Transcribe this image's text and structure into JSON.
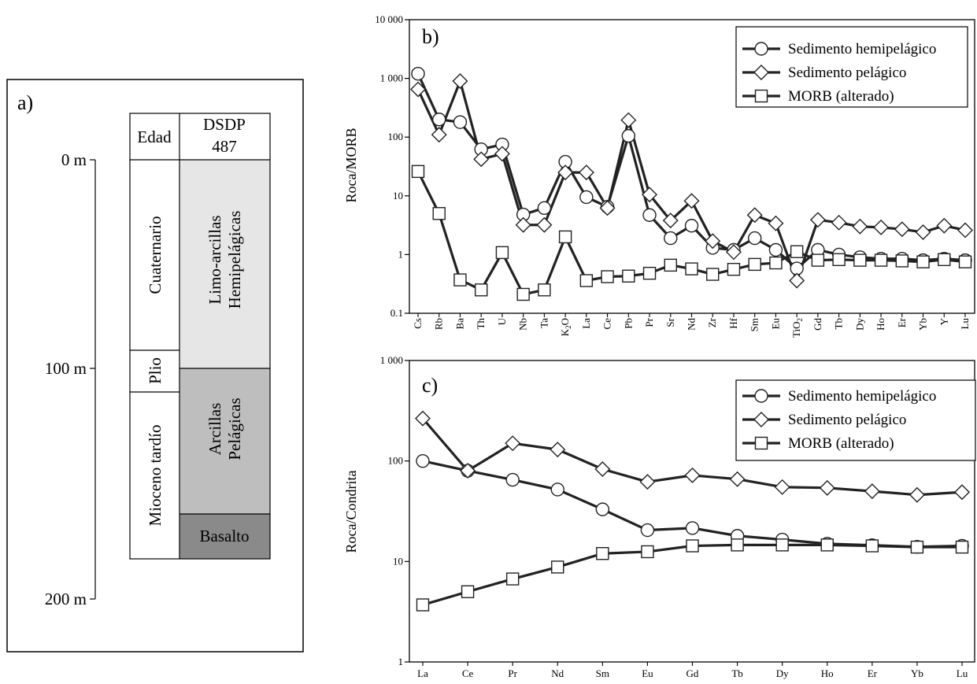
{
  "colors": {
    "hemipelagic_fill": "#e6e6e6",
    "pelagic_fill": "#bebebe",
    "basalt_fill": "#8a8a8a",
    "line": "#222222"
  },
  "panel_a": {
    "label": "a)",
    "header_left": "Edad",
    "header_right": [
      "DSDP",
      "487"
    ],
    "ages": [
      "Cuaternario",
      "Plio",
      "Mioceno tardío"
    ],
    "units": [
      {
        "lines": [
          "Limo-arcillas",
          "Hemipelágicas"
        ]
      },
      {
        "lines": [
          "Arcillas",
          "Pelágicas"
        ]
      },
      {
        "lines": [
          "Basalto"
        ]
      }
    ],
    "depth_labels": [
      "0 m",
      "100 m",
      "200 m"
    ]
  },
  "chart_data": [
    {
      "type": "line",
      "label": "b)",
      "ylabel": "Roca/MORB",
      "yscale": "log",
      "ylim": [
        0.1,
        10000
      ],
      "yticks": [
        "0.1",
        "1",
        "10",
        "100",
        "1 000",
        "10 000"
      ],
      "categories": [
        "Cs",
        "Rb",
        "Ba",
        "Th",
        "U",
        "Nb",
        "Ta",
        "K2O",
        "La",
        "Ce",
        "Pb",
        "Pr",
        "Sr",
        "Nd",
        "Zr",
        "Hf",
        "Sm",
        "Eu",
        "TiO2",
        "Gd",
        "Tb",
        "Dy",
        "Ho",
        "Er",
        "Yb",
        "Y",
        "Lu"
      ],
      "legend_position": "top-right",
      "series": [
        {
          "name": "Sedimento hemipelágico",
          "marker": "circle",
          "values": [
            1200,
            200,
            180,
            62,
            75,
            4.8,
            6.2,
            38,
            9.5,
            6.5,
            105,
            4.7,
            1.9,
            3.1,
            1.3,
            1.2,
            1.9,
            1.2,
            0.58,
            1.2,
            1.0,
            0.9,
            0.85,
            0.85,
            0.8,
            0.85,
            0.8
          ]
        },
        {
          "name": "Sedimento pelágico",
          "marker": "diamond",
          "values": [
            650,
            110,
            900,
            42,
            52,
            3.2,
            3.2,
            25,
            25,
            6.2,
            195,
            10.5,
            3.8,
            8.2,
            1.7,
            1.1,
            4.7,
            3.4,
            0.36,
            3.9,
            3.5,
            3.0,
            2.9,
            2.7,
            2.4,
            3.1,
            2.6
          ]
        },
        {
          "name": "MORB (alterado)",
          "marker": "square",
          "values": [
            26,
            5,
            0.37,
            0.25,
            1.08,
            0.21,
            0.25,
            2.0,
            0.36,
            0.42,
            0.43,
            0.48,
            0.66,
            0.57,
            0.46,
            0.56,
            0.68,
            0.72,
            1.12,
            0.8,
            0.82,
            0.8,
            0.8,
            0.78,
            0.75,
            0.82,
            0.75
          ]
        }
      ]
    },
    {
      "type": "line",
      "label": "c)",
      "ylabel": "Roca/Condrita",
      "yscale": "log",
      "ylim": [
        1,
        1000
      ],
      "yticks": [
        "1",
        "10",
        "100",
        "1 000"
      ],
      "categories": [
        "La",
        "Ce",
        "Pr",
        "Nd",
        "Sm",
        "Eu",
        "Gd",
        "Tb",
        "Dy",
        "Ho",
        "Er",
        "Yb",
        "Lu"
      ],
      "legend_position": "top-right",
      "series": [
        {
          "name": "Sedimento hemipelágico",
          "marker": "circle",
          "values": [
            100,
            80,
            65,
            52,
            33,
            20.5,
            21.5,
            18,
            16.5,
            15,
            14.5,
            14,
            14.3
          ]
        },
        {
          "name": "Sedimento pelágico",
          "marker": "diamond",
          "values": [
            265,
            80,
            150,
            130,
            83,
            62,
            72,
            66,
            55,
            54,
            50,
            46,
            49
          ]
        },
        {
          "name": "MORB (alterado)",
          "marker": "square",
          "values": [
            3.7,
            5,
            6.7,
            8.8,
            12,
            12.5,
            14.3,
            14.6,
            14.6,
            14.6,
            14.3,
            13.9,
            13.9
          ]
        }
      ]
    }
  ]
}
